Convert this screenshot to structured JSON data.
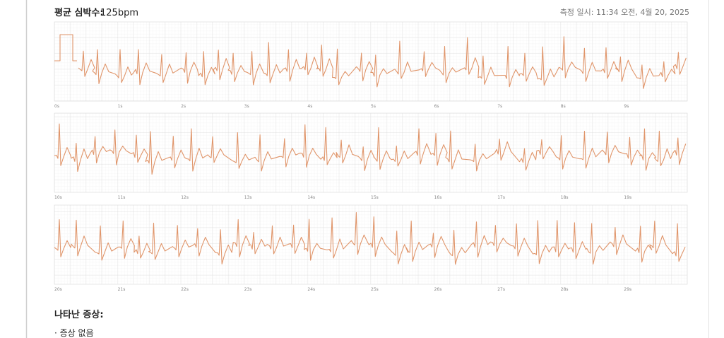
{
  "header": {
    "title_label": "평균 심박수:",
    "title_value": "125bpm",
    "timestamp": "측정 일시: 11:34 오전, 4월 20, 2025"
  },
  "strips": [
    {
      "labels": [
        "0s",
        "1s",
        "2s",
        "3s",
        "4s",
        "5s",
        "6s",
        "7s",
        "8s",
        "9s"
      ]
    },
    {
      "labels": [
        "10s",
        "11s",
        "12s",
        "13s",
        "14s",
        "15s",
        "16s",
        "17s",
        "18s",
        "19s"
      ]
    },
    {
      "labels": [
        "20s",
        "21s",
        "22s",
        "23s",
        "24s",
        "25s",
        "26s",
        "27s",
        "28s",
        "29s"
      ]
    }
  ],
  "symptoms": {
    "title": "나타난 증상:",
    "items": [
      "· 증상 없음"
    ]
  }
}
